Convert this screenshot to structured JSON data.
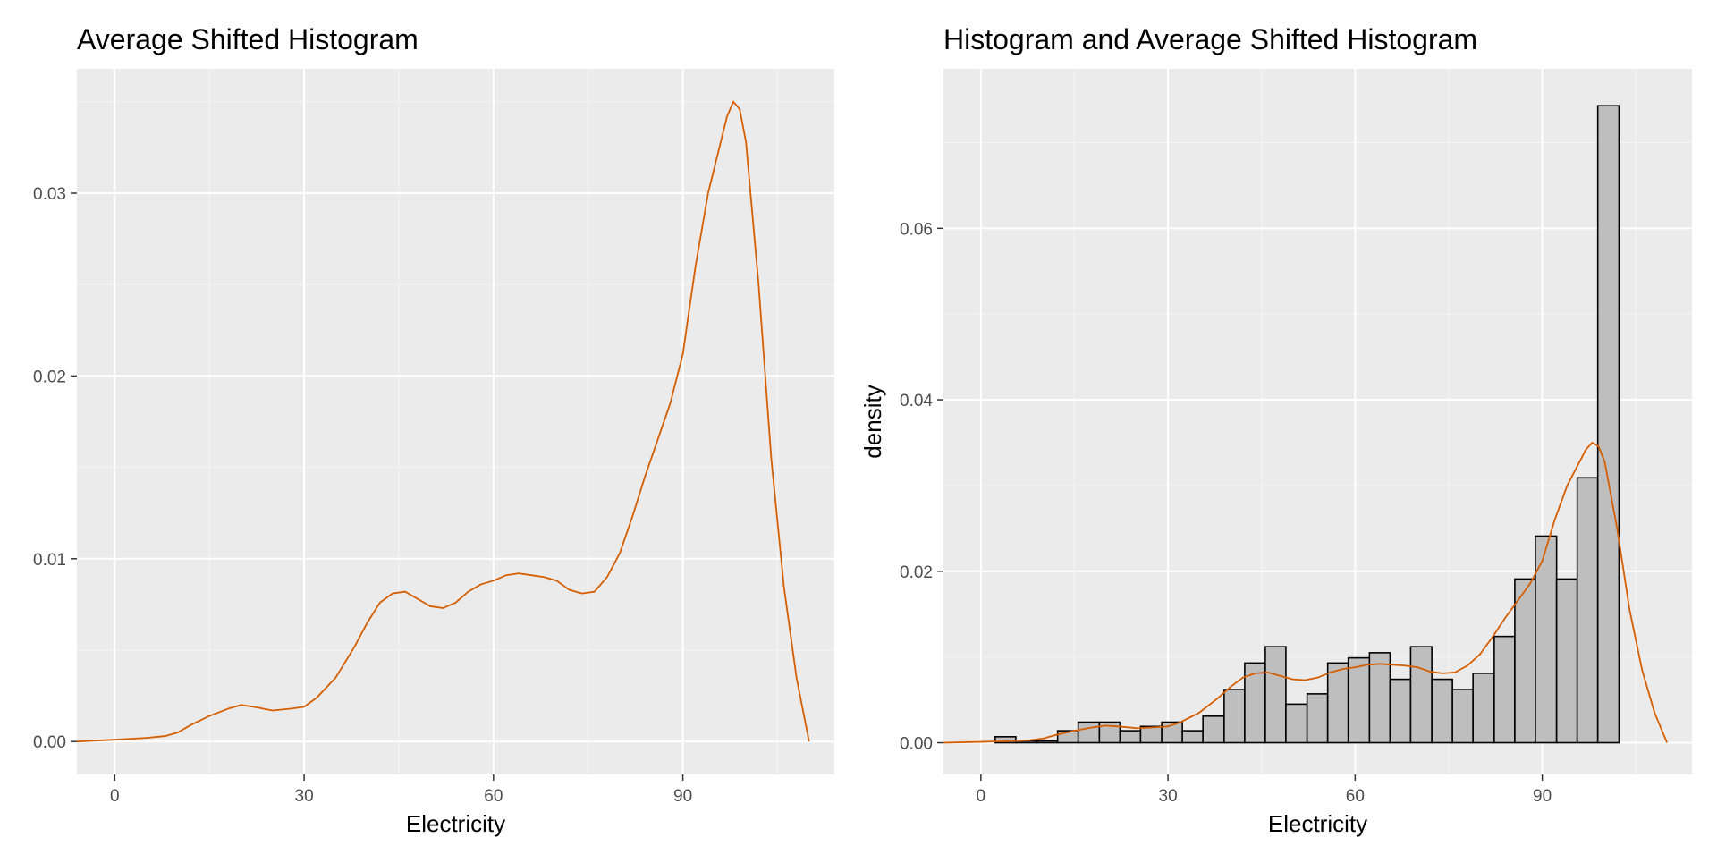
{
  "colors": {
    "panel_bg": "#ebebeb",
    "grid_major": "#ffffff",
    "grid_minor": "#f5f5f5",
    "curve": "#d55e00",
    "bar_fill": "#bebebe",
    "bar_stroke": "#000000",
    "tick_text": "#4d4d4d"
  },
  "chart_data": [
    {
      "type": "line",
      "title": "Average Shifted Histogram",
      "xlabel": "Electricity",
      "ylabel": "",
      "xlim": [
        -6,
        114
      ],
      "ylim": [
        -0.0018,
        0.0368
      ],
      "xticks": [
        0,
        30,
        60,
        90
      ],
      "xtick_labels": [
        "0",
        "30",
        "60",
        "90"
      ],
      "yticks": [
        0.0,
        0.01,
        0.02,
        0.03
      ],
      "ytick_labels": [
        "0.00",
        "0.01",
        "0.02",
        "0.03"
      ],
      "grid": true,
      "legend": "none",
      "series": [
        {
          "x": [
            -6,
            0,
            5,
            8,
            10,
            12,
            15,
            18,
            20,
            22,
            25,
            28,
            30,
            32,
            35,
            38,
            40,
            42,
            44,
            46,
            48,
            50,
            52,
            54,
            56,
            58,
            60,
            62,
            64,
            66,
            68,
            70,
            72,
            74,
            76,
            78,
            80,
            82,
            84,
            86,
            88,
            90,
            92,
            94,
            96,
            97,
            98,
            99,
            100,
            102,
            104,
            106,
            108,
            110
          ],
          "y": [
            0.0,
            0.0001,
            0.0002,
            0.0003,
            0.0005,
            0.0009,
            0.0014,
            0.0018,
            0.002,
            0.0019,
            0.0017,
            0.0018,
            0.0019,
            0.0024,
            0.0035,
            0.0052,
            0.0065,
            0.0076,
            0.0081,
            0.0082,
            0.0078,
            0.0074,
            0.0073,
            0.0076,
            0.0082,
            0.0086,
            0.0088,
            0.0091,
            0.0092,
            0.0091,
            0.009,
            0.0088,
            0.0083,
            0.0081,
            0.0082,
            0.009,
            0.0103,
            0.0123,
            0.0145,
            0.0165,
            0.0185,
            0.0212,
            0.026,
            0.03,
            0.0328,
            0.0342,
            0.035,
            0.0346,
            0.0328,
            0.025,
            0.0155,
            0.0085,
            0.0035,
            0.0
          ]
        }
      ]
    },
    {
      "type": "bar",
      "title": "Histogram and Average Shifted Histogram",
      "xlabel": "Electricity",
      "ylabel": "density",
      "xlim": [
        -6,
        114
      ],
      "ylim": [
        -0.0037,
        0.0786
      ],
      "xticks": [
        0,
        30,
        60,
        90
      ],
      "xtick_labels": [
        "0",
        "30",
        "60",
        "90"
      ],
      "yticks": [
        0.0,
        0.02,
        0.04,
        0.06
      ],
      "ytick_labels": [
        "0.00",
        "0.02",
        "0.04",
        "0.06"
      ],
      "grid": true,
      "legend": "none",
      "bin_edges": [
        2.3,
        5.6,
        9.0,
        12.3,
        15.6,
        19.0,
        22.3,
        25.6,
        29.0,
        32.3,
        35.6,
        39.0,
        42.3,
        45.6,
        48.9,
        52.3,
        55.6,
        58.9,
        62.3,
        65.6,
        68.9,
        72.3,
        75.6,
        78.9,
        82.3,
        85.6,
        88.9,
        92.3,
        95.6,
        98.9,
        102.3
      ],
      "bar_heights": [
        0.0007,
        0.0002,
        0.0002,
        0.0014,
        0.0024,
        0.0024,
        0.0014,
        0.0019,
        0.0024,
        0.0014,
        0.0031,
        0.0062,
        0.0093,
        0.0112,
        0.0045,
        0.0057,
        0.0093,
        0.0099,
        0.0105,
        0.0074,
        0.0112,
        0.0074,
        0.0062,
        0.0081,
        0.0124,
        0.0191,
        0.0241,
        0.0191,
        0.0309,
        0.0743
      ],
      "series": [
        {
          "x": [
            -6,
            0,
            5,
            8,
            10,
            12,
            15,
            18,
            20,
            22,
            25,
            28,
            30,
            32,
            35,
            38,
            40,
            42,
            44,
            46,
            48,
            50,
            52,
            54,
            56,
            58,
            60,
            62,
            64,
            66,
            68,
            70,
            72,
            74,
            76,
            78,
            80,
            82,
            84,
            86,
            88,
            90,
            92,
            94,
            96,
            97,
            98,
            99,
            100,
            102,
            104,
            106,
            108,
            110
          ],
          "y": [
            0.0,
            0.0001,
            0.0002,
            0.0003,
            0.0005,
            0.0009,
            0.0014,
            0.0018,
            0.002,
            0.0019,
            0.0017,
            0.0018,
            0.0019,
            0.0024,
            0.0035,
            0.0052,
            0.0065,
            0.0076,
            0.0081,
            0.0082,
            0.0078,
            0.0074,
            0.0073,
            0.0076,
            0.0082,
            0.0086,
            0.0088,
            0.0091,
            0.0092,
            0.0091,
            0.009,
            0.0088,
            0.0083,
            0.0081,
            0.0082,
            0.009,
            0.0103,
            0.0123,
            0.0145,
            0.0165,
            0.0185,
            0.0212,
            0.026,
            0.03,
            0.0328,
            0.0342,
            0.035,
            0.0346,
            0.0328,
            0.025,
            0.0155,
            0.0085,
            0.0035,
            0.0
          ]
        }
      ]
    }
  ]
}
